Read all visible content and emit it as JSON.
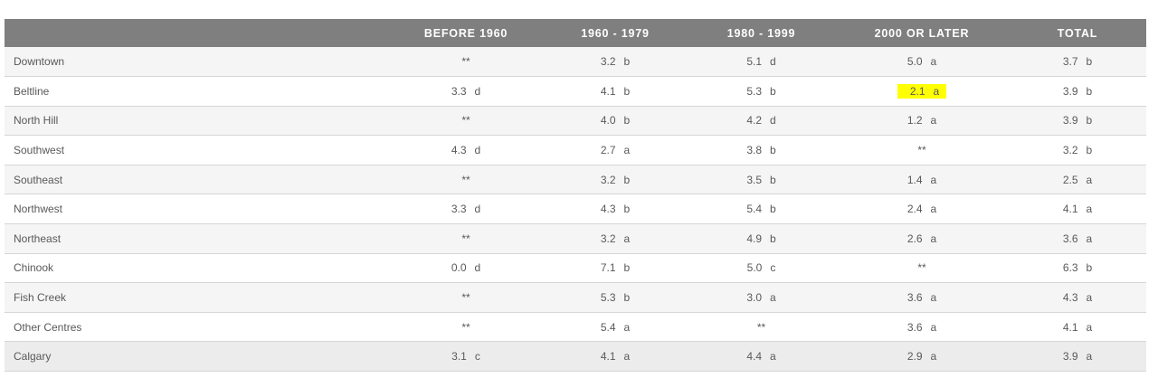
{
  "table": {
    "headers": [
      "",
      "BEFORE 1960",
      "1960 - 1979",
      "1980 - 1999",
      "2000 OR LATER",
      "TOTAL"
    ],
    "rows": [
      {
        "name": "Downtown",
        "cells": [
          {
            "v": "**",
            "g": ""
          },
          {
            "v": "3.2",
            "g": "b"
          },
          {
            "v": "5.1",
            "g": "d"
          },
          {
            "v": "5.0",
            "g": "a"
          },
          {
            "v": "3.7",
            "g": "b"
          }
        ]
      },
      {
        "name": "Beltline",
        "cells": [
          {
            "v": "3.3",
            "g": "d"
          },
          {
            "v": "4.1",
            "g": "b"
          },
          {
            "v": "5.3",
            "g": "b"
          },
          {
            "v": "2.1",
            "g": "a",
            "highlight": true
          },
          {
            "v": "3.9",
            "g": "b"
          }
        ]
      },
      {
        "name": "North Hill",
        "cells": [
          {
            "v": "**",
            "g": ""
          },
          {
            "v": "4.0",
            "g": "b"
          },
          {
            "v": "4.2",
            "g": "d"
          },
          {
            "v": "1.2",
            "g": "a"
          },
          {
            "v": "3.9",
            "g": "b"
          }
        ]
      },
      {
        "name": "Southwest",
        "cells": [
          {
            "v": "4.3",
            "g": "d"
          },
          {
            "v": "2.7",
            "g": "a"
          },
          {
            "v": "3.8",
            "g": "b"
          },
          {
            "v": "**",
            "g": ""
          },
          {
            "v": "3.2",
            "g": "b"
          }
        ]
      },
      {
        "name": "Southeast",
        "cells": [
          {
            "v": "**",
            "g": ""
          },
          {
            "v": "3.2",
            "g": "b"
          },
          {
            "v": "3.5",
            "g": "b"
          },
          {
            "v": "1.4",
            "g": "a"
          },
          {
            "v": "2.5",
            "g": "a"
          }
        ]
      },
      {
        "name": "Northwest",
        "cells": [
          {
            "v": "3.3",
            "g": "d"
          },
          {
            "v": "4.3",
            "g": "b"
          },
          {
            "v": "5.4",
            "g": "b"
          },
          {
            "v": "2.4",
            "g": "a"
          },
          {
            "v": "4.1",
            "g": "a"
          }
        ]
      },
      {
        "name": "Northeast",
        "cells": [
          {
            "v": "**",
            "g": ""
          },
          {
            "v": "3.2",
            "g": "a"
          },
          {
            "v": "4.9",
            "g": "b"
          },
          {
            "v": "2.6",
            "g": "a"
          },
          {
            "v": "3.6",
            "g": "a"
          }
        ]
      },
      {
        "name": "Chinook",
        "cells": [
          {
            "v": "0.0",
            "g": "d"
          },
          {
            "v": "7.1",
            "g": "b"
          },
          {
            "v": "5.0",
            "g": "c"
          },
          {
            "v": "**",
            "g": ""
          },
          {
            "v": "6.3",
            "g": "b"
          }
        ]
      },
      {
        "name": "Fish Creek",
        "cells": [
          {
            "v": "**",
            "g": ""
          },
          {
            "v": "5.3",
            "g": "b"
          },
          {
            "v": "3.0",
            "g": "a"
          },
          {
            "v": "3.6",
            "g": "a"
          },
          {
            "v": "4.3",
            "g": "a"
          }
        ]
      },
      {
        "name": "Other Centres",
        "cells": [
          {
            "v": "**",
            "g": ""
          },
          {
            "v": "5.4",
            "g": "a"
          },
          {
            "v": "**",
            "g": ""
          },
          {
            "v": "3.6",
            "g": "a"
          },
          {
            "v": "4.1",
            "g": "a"
          }
        ]
      },
      {
        "name": "Calgary",
        "total": true,
        "cells": [
          {
            "v": "3.1",
            "g": "c"
          },
          {
            "v": "4.1",
            "g": "a"
          },
          {
            "v": "4.4",
            "g": "a"
          },
          {
            "v": "2.9",
            "g": "a"
          },
          {
            "v": "3.9",
            "g": "a"
          }
        ]
      }
    ]
  },
  "colors": {
    "header_bg": "#7f7f7f",
    "row_odd": "#f5f5f5",
    "row_even": "#ffffff",
    "highlight": "#ffff00",
    "text": "#595959"
  }
}
